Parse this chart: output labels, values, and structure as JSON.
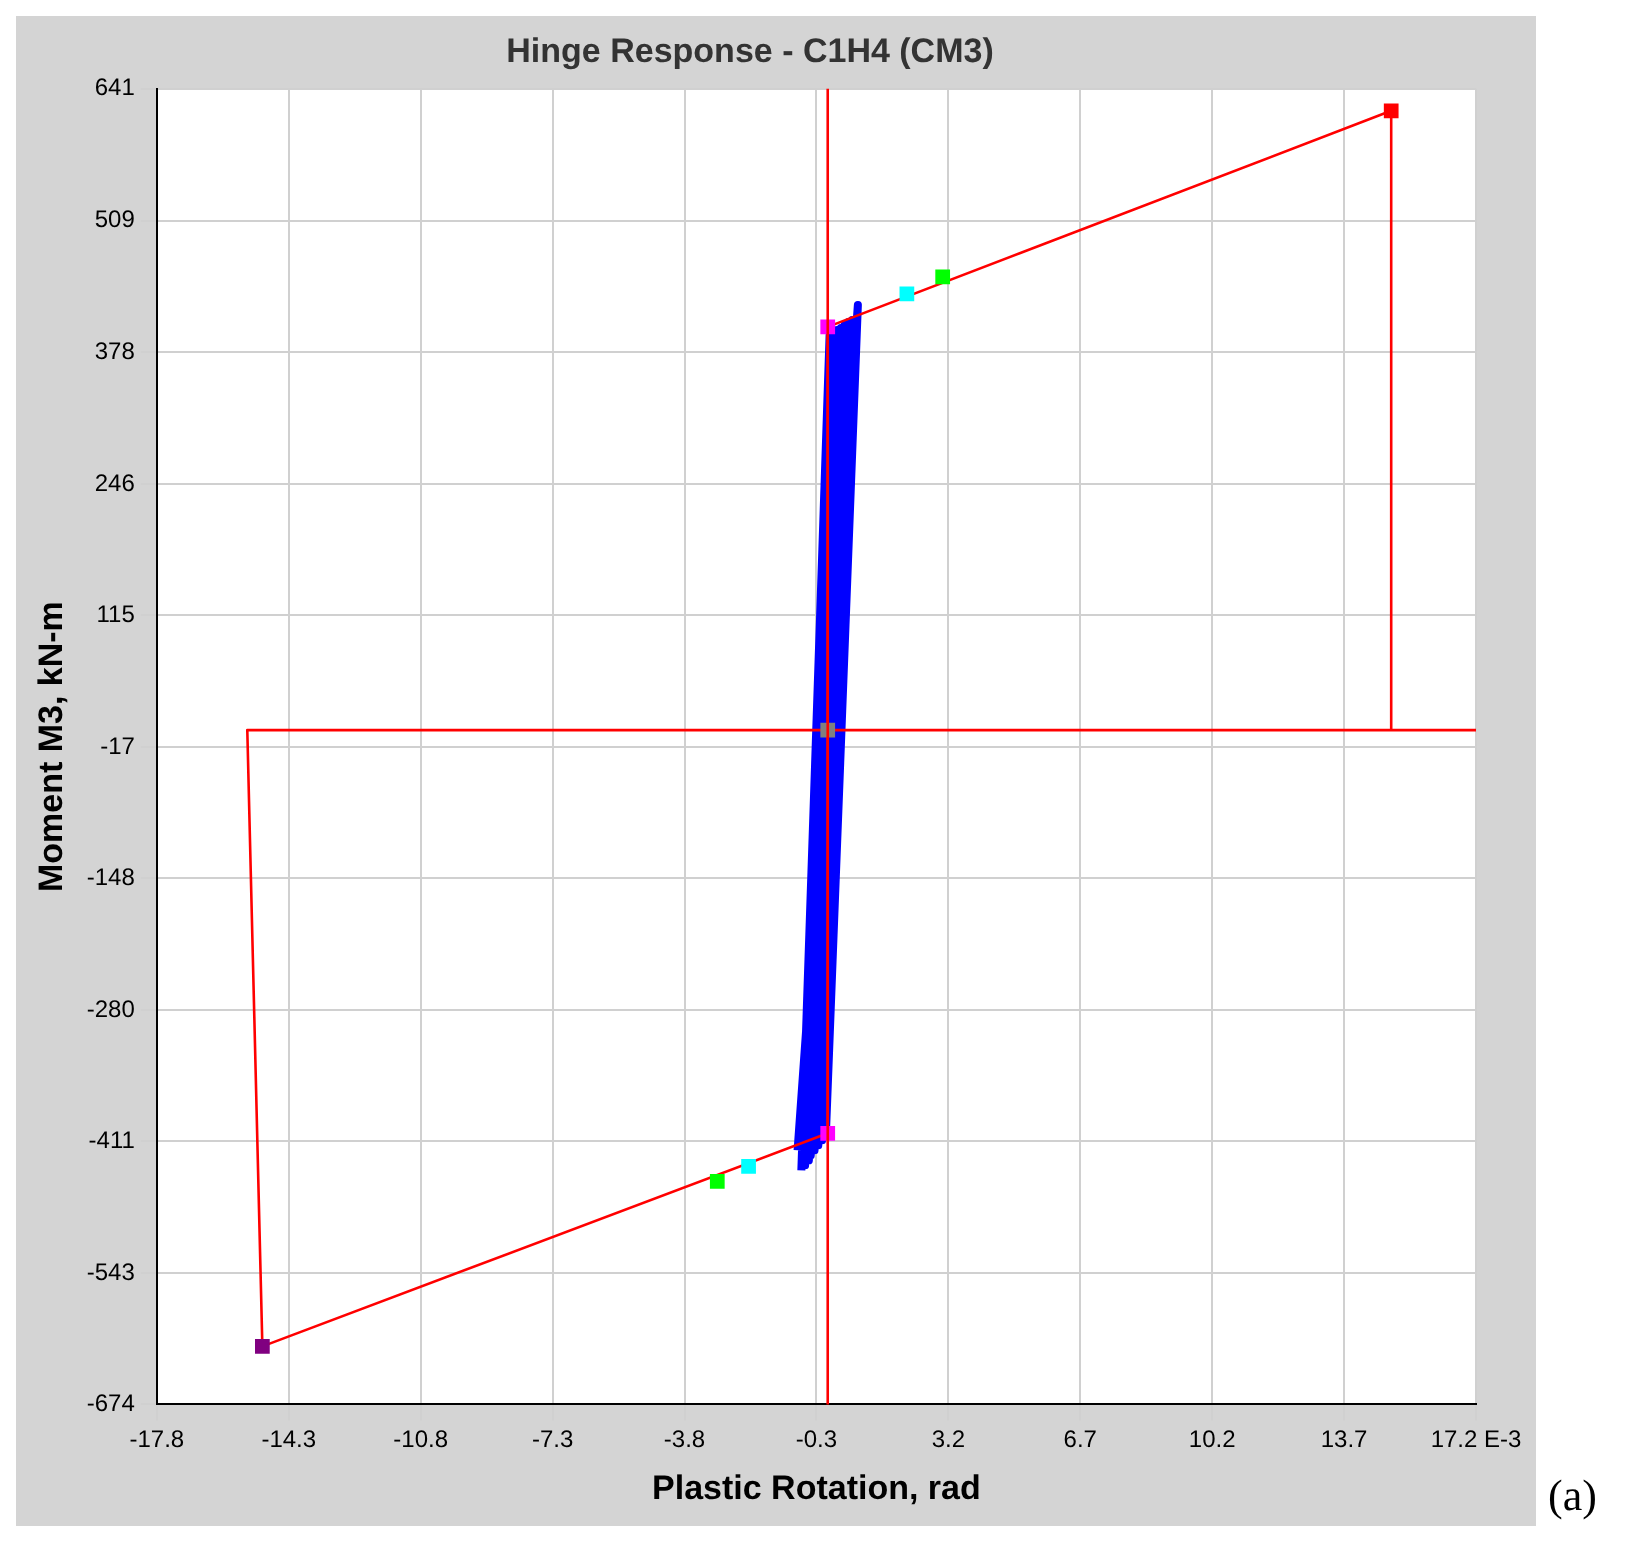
{
  "chart_data": {
    "type": "line",
    "title": "Hinge Response - C1H4 (CM3)",
    "xlabel": "Plastic Rotation, rad",
    "ylabel": "Moment M3, kN-m",
    "xlim": [
      -17.8,
      17.2
    ],
    "xticks": [
      -17.8,
      -14.3,
      -10.8,
      -7.3,
      -3.8,
      -0.3,
      3.2,
      6.7,
      10.2,
      {
        "value": 17.2,
        "label": "17.2 E-3"
      },
      13.7
    ],
    "ylim": [
      -674,
      641
    ],
    "yticks": [
      -674,
      -543,
      -411,
      -280,
      -148,
      -17,
      115,
      246,
      378,
      509,
      641
    ],
    "grid": true,
    "legend": false,
    "ref_lines": [
      {
        "axis": "x",
        "value": 0,
        "color": "#ff0000"
      }
    ],
    "annotations": [
      "(a)"
    ],
    "series": [
      {
        "color": "#ff0000",
        "marker": "none",
        "x": [
          17.2,
          -15.4,
          -15.0,
          0,
          0,
          14.95,
          14.95
        ],
        "values": [
          0,
          0,
          -616,
          -403,
          403,
          619,
          0
        ]
      },
      {
        "color": "#0000ff",
        "marker": "none",
        "x": [
          -0.7,
          0.05,
          -0.6,
          0.15,
          -0.5,
          0.25,
          -0.45,
          0.35,
          -0.35,
          0.45,
          -0.25,
          0.55,
          -0.15,
          0.65,
          -0.05,
          0.8,
          -0.8
        ],
        "values": [
          -440,
          395,
          -435,
          398,
          -430,
          400,
          -425,
          402,
          -420,
          405,
          -415,
          408,
          -410,
          410,
          -405,
          425,
          -420
        ]
      },
      {
        "type": "scatter",
        "marker": "square",
        "colors": [
          "#ff0000",
          "#800080",
          "#ff00ff",
          "#ff00ff",
          "#808080",
          "#00ffff",
          "#00ff00",
          "#00ffff",
          "#00ff00"
        ],
        "x": [
          14.95,
          -15.0,
          0,
          0,
          0,
          2.1,
          3.05,
          -2.1,
          -2.93
        ],
        "values": [
          619,
          -616,
          403,
          -403,
          0,
          436,
          453,
          -436,
          -451
        ]
      }
    ]
  }
}
